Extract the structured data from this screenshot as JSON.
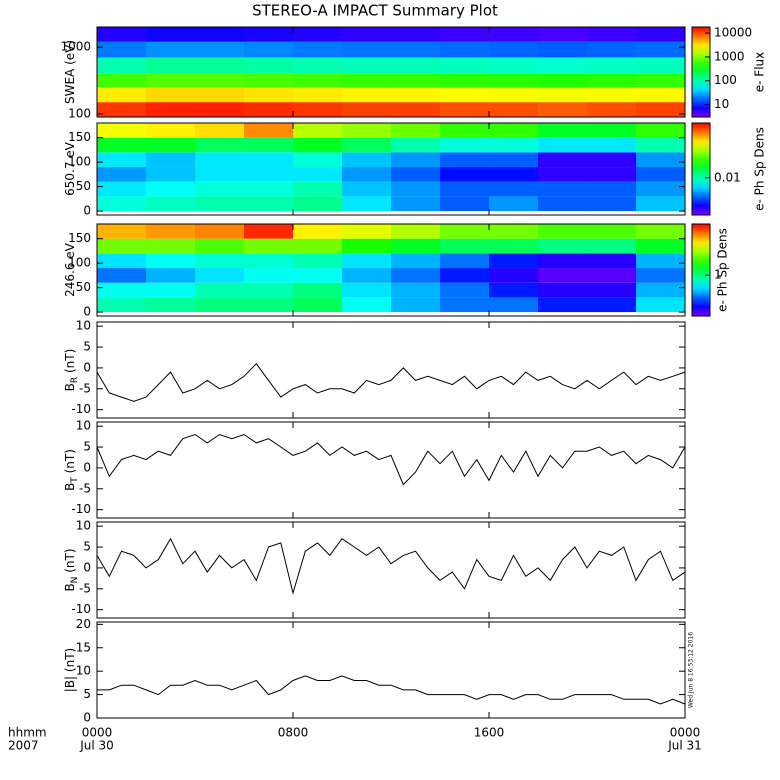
{
  "title": "STEREO-A IMPACT Summary Plot",
  "timestamp": "Wed Jun  8 16:53:12 2016",
  "x_axis_label": [
    "hhmm",
    "2007"
  ],
  "chart_data": [
    {
      "type": "spectrogram",
      "ylabel": [
        "SWEA (eV)"
      ],
      "ylog": true,
      "ylim": [
        90,
        2000
      ],
      "yticks": [
        100,
        1000
      ],
      "xlim": [
        0,
        24
      ],
      "time_edges": [
        0,
        2,
        4,
        6,
        8,
        10,
        12,
        14,
        16,
        18,
        20,
        22,
        24
      ],
      "y_edges": [
        90,
        150,
        250,
        400,
        700,
        1200,
        2000
      ],
      "zlim": [
        3,
        18000
      ],
      "zlog": true,
      "cbticks": [
        10,
        100,
        1000,
        10000
      ],
      "cblabel": "e- Flux",
      "z": [
        [
          12000,
          14000,
          14000,
          13000,
          12000,
          11000,
          11000,
          10000,
          10000,
          9000,
          10000,
          11000
        ],
        [
          3000,
          3500,
          3500,
          3200,
          3000,
          2800,
          2800,
          2600,
          2500,
          2400,
          2500,
          2700
        ],
        [
          600,
          700,
          700,
          650,
          600,
          560,
          560,
          520,
          500,
          480,
          500,
          540
        ],
        [
          100,
          120,
          120,
          110,
          100,
          95,
          95,
          90,
          85,
          80,
          85,
          90
        ],
        [
          20,
          24,
          24,
          22,
          20,
          19,
          19,
          18,
          17,
          16,
          17,
          18
        ],
        [
          6,
          7,
          7,
          6.5,
          6,
          5.5,
          5.5,
          5,
          5,
          4.5,
          5,
          5.5
        ]
      ]
    },
    {
      "type": "spectrogram",
      "ylabel": [
        "650.7 eV"
      ],
      "ylim": [
        -8,
        180
      ],
      "yticks": [
        0,
        50,
        100,
        150
      ],
      "xlim": [
        0,
        24
      ],
      "time_edges": [
        0,
        2,
        4,
        6,
        8,
        10,
        12,
        14,
        16,
        18,
        20,
        22,
        24
      ],
      "y_edges": [
        0,
        30,
        60,
        90,
        120,
        150,
        180
      ],
      "zlim": [
        0.001,
        0.3
      ],
      "zlog": true,
      "cbticks": [
        0.01
      ],
      "cblabel": "e- Ph Sp Dens",
      "z": [
        [
          0.008,
          0.009,
          0.01,
          0.01,
          0.012,
          0.006,
          0.004,
          0.003,
          0.004,
          0.003,
          0.003,
          0.005
        ],
        [
          0.006,
          0.007,
          0.008,
          0.008,
          0.01,
          0.005,
          0.004,
          0.003,
          0.003,
          0.003,
          0.003,
          0.004
        ],
        [
          0.004,
          0.005,
          0.006,
          0.006,
          0.006,
          0.004,
          0.003,
          0.002,
          0.002,
          0.0015,
          0.0015,
          0.003
        ],
        [
          0.006,
          0.005,
          0.006,
          0.006,
          0.008,
          0.005,
          0.004,
          0.003,
          0.003,
          0.0015,
          0.0015,
          0.004
        ],
        [
          0.02,
          0.02,
          0.015,
          0.015,
          0.02,
          0.015,
          0.01,
          0.008,
          0.008,
          0.006,
          0.006,
          0.01
        ],
        [
          0.08,
          0.09,
          0.1,
          0.15,
          0.06,
          0.05,
          0.04,
          0.03,
          0.03,
          0.02,
          0.02,
          0.03
        ]
      ]
    },
    {
      "type": "spectrogram",
      "ylabel": [
        "246.6 eV"
      ],
      "ylim": [
        -8,
        180
      ],
      "yticks": [
        0,
        50,
        100,
        150
      ],
      "xlim": [
        0,
        24
      ],
      "time_edges": [
        0,
        2,
        4,
        6,
        8,
        10,
        12,
        14,
        16,
        18,
        20,
        22,
        24
      ],
      "y_edges": [
        0,
        30,
        60,
        90,
        120,
        150,
        180
      ],
      "zlim": [
        0.1,
        18
      ],
      "zlog": true,
      "cbticks": [
        1
      ],
      "cblabel": "e- Ph Sp Dens",
      "z": [
        [
          0.8,
          0.9,
          1,
          1,
          1.2,
          0.6,
          0.4,
          0.3,
          0.3,
          0.2,
          0.2,
          0.5
        ],
        [
          0.6,
          0.6,
          0.8,
          0.8,
          1,
          0.5,
          0.4,
          0.3,
          0.2,
          0.15,
          0.15,
          0.4
        ],
        [
          0.3,
          0.4,
          0.5,
          0.6,
          0.6,
          0.4,
          0.3,
          0.2,
          0.15,
          0.12,
          0.12,
          0.3
        ],
        [
          0.5,
          0.6,
          0.7,
          0.7,
          0.8,
          0.5,
          0.4,
          0.3,
          0.2,
          0.15,
          0.15,
          0.4
        ],
        [
          3,
          3,
          2.5,
          3,
          3,
          2,
          1.5,
          1.2,
          1.2,
          1,
          1,
          1.5
        ],
        [
          8,
          9,
          10,
          15,
          6,
          5,
          4,
          3,
          3,
          2.5,
          2.5,
          3
        ]
      ]
    },
    {
      "type": "line",
      "ylabel": [
        "B",
        "R",
        " (nT)"
      ],
      "ylim": [
        -12,
        11
      ],
      "yticks": [
        -10,
        -5,
        0,
        5,
        10
      ],
      "xlim": [
        0,
        24
      ],
      "color": "#000000",
      "x": [
        0,
        0.5,
        1,
        1.5,
        2,
        2.5,
        3,
        3.5,
        4,
        4.5,
        5,
        5.5,
        6,
        6.5,
        7,
        7.5,
        8,
        8.5,
        9,
        9.5,
        10,
        10.5,
        11,
        11.5,
        12,
        12.5,
        13,
        13.5,
        14,
        14.5,
        15,
        15.5,
        16,
        16.5,
        17,
        17.5,
        18,
        18.5,
        19,
        19.5,
        20,
        20.5,
        21,
        21.5,
        22,
        22.5,
        23,
        23.5,
        24
      ],
      "values": [
        -1,
        -6,
        -7,
        -8,
        -7,
        -4,
        -1,
        -6,
        -5,
        -3,
        -5,
        -4,
        -2,
        1,
        -3,
        -7,
        -5,
        -4,
        -6,
        -5,
        -5,
        -6,
        -3,
        -4,
        -3,
        0,
        -3,
        -2,
        -3,
        -4,
        -2,
        -5,
        -3,
        -2,
        -4,
        -1,
        -3,
        -2,
        -4,
        -5,
        -3,
        -5,
        -3,
        -1,
        -4,
        -2,
        -3,
        -2,
        -1
      ]
    },
    {
      "type": "line",
      "ylabel": [
        "B",
        "T",
        " (nT)"
      ],
      "ylim": [
        -12,
        11
      ],
      "yticks": [
        -10,
        -5,
        0,
        5,
        10
      ],
      "xlim": [
        0,
        24
      ],
      "color": "#000000",
      "x": [
        0,
        0.5,
        1,
        1.5,
        2,
        2.5,
        3,
        3.5,
        4,
        4.5,
        5,
        5.5,
        6,
        6.5,
        7,
        7.5,
        8,
        8.5,
        9,
        9.5,
        10,
        10.5,
        11,
        11.5,
        12,
        12.5,
        13,
        13.5,
        14,
        14.5,
        15,
        15.5,
        16,
        16.5,
        17,
        17.5,
        18,
        18.5,
        19,
        19.5,
        20,
        20.5,
        21,
        21.5,
        22,
        22.5,
        23,
        23.5,
        24
      ],
      "values": [
        5,
        -2,
        2,
        3,
        2,
        4,
        3,
        7,
        8,
        6,
        8,
        7,
        8,
        6,
        7,
        5,
        3,
        4,
        6,
        3,
        5,
        3,
        4,
        2,
        3,
        -4,
        -1,
        4,
        1,
        4,
        -2,
        2,
        -3,
        3,
        -1,
        4,
        -2,
        3,
        0,
        4,
        4,
        5,
        3,
        4,
        1,
        3,
        2,
        0,
        5
      ]
    },
    {
      "type": "line",
      "ylabel": [
        "B",
        "N",
        " (nT)"
      ],
      "ylim": [
        -12,
        11
      ],
      "yticks": [
        -10,
        -5,
        0,
        5,
        10
      ],
      "xlim": [
        0,
        24
      ],
      "color": "#000000",
      "x": [
        0,
        0.5,
        1,
        1.5,
        2,
        2.5,
        3,
        3.5,
        4,
        4.5,
        5,
        5.5,
        6,
        6.5,
        7,
        7.5,
        8,
        8.5,
        9,
        9.5,
        10,
        10.5,
        11,
        11.5,
        12,
        12.5,
        13,
        13.5,
        14,
        14.5,
        15,
        15.5,
        16,
        16.5,
        17,
        17.5,
        18,
        18.5,
        19,
        19.5,
        20,
        20.5,
        21,
        21.5,
        22,
        22.5,
        23,
        23.5,
        24
      ],
      "values": [
        3,
        -2,
        4,
        3,
        0,
        2,
        7,
        1,
        4,
        -1,
        3,
        0,
        2,
        -3,
        5,
        6,
        -6,
        4,
        6,
        3,
        7,
        5,
        3,
        5,
        1,
        3,
        4,
        0,
        -3,
        -1,
        -5,
        2,
        -2,
        -3,
        3,
        -2,
        0,
        -3,
        2,
        5,
        0,
        4,
        3,
        5,
        -3,
        2,
        4,
        -3,
        -1
      ]
    },
    {
      "type": "line",
      "ylabel": [
        "|B| (nT)"
      ],
      "ylim": [
        0,
        20.5
      ],
      "yticks": [
        0,
        5,
        10,
        15,
        20
      ],
      "xlim": [
        0,
        24
      ],
      "color": "#000000",
      "x": [
        0,
        0.5,
        1,
        1.5,
        2,
        2.5,
        3,
        3.5,
        4,
        4.5,
        5,
        5.5,
        6,
        6.5,
        7,
        7.5,
        8,
        8.5,
        9,
        9.5,
        10,
        10.5,
        11,
        11.5,
        12,
        12.5,
        13,
        13.5,
        14,
        14.5,
        15,
        15.5,
        16,
        16.5,
        17,
        17.5,
        18,
        18.5,
        19,
        19.5,
        20,
        20.5,
        21,
        21.5,
        22,
        22.5,
        23,
        23.5,
        24
      ],
      "values": [
        6,
        6,
        7,
        7,
        6,
        5,
        7,
        7,
        8,
        7,
        7,
        6,
        7,
        8,
        5,
        6,
        8,
        9,
        8,
        8,
        9,
        8,
        8,
        7,
        7,
        6,
        6,
        5,
        5,
        5,
        5,
        4,
        5,
        5,
        4,
        5,
        5,
        4,
        4,
        5,
        5,
        5,
        5,
        4,
        4,
        4,
        3,
        4,
        3
      ],
      "xticks": [
        {
          "value": 0,
          "label": "0000"
        },
        {
          "value": 8,
          "label": "0800"
        },
        {
          "value": 16,
          "label": "1600"
        },
        {
          "value": 24,
          "label": "0000"
        }
      ],
      "date_labels": [
        {
          "value": 0,
          "label": "Jul 30"
        },
        {
          "value": 24,
          "label": "Jul 31"
        }
      ]
    }
  ]
}
